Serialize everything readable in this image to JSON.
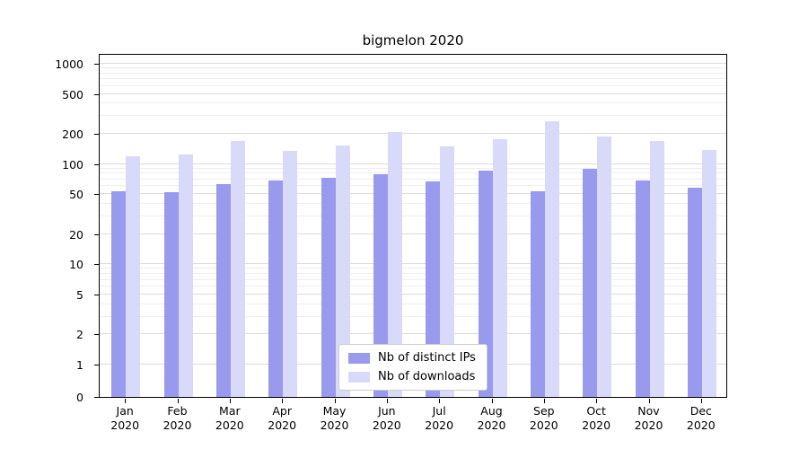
{
  "chart_data": {
    "type": "bar",
    "title": "bigmelon 2020",
    "yscale": "symlog",
    "ylim": [
      0,
      1300
    ],
    "yticks": [
      0,
      1,
      2,
      5,
      10,
      20,
      50,
      100,
      200,
      500,
      1000
    ],
    "minor_tick_mantissas": [
      3,
      4,
      6,
      7,
      8,
      9
    ],
    "grid": "horizontal major and minor gridlines",
    "legend_position": "lower center",
    "categories": [
      "Jan 2020",
      "Feb 2020",
      "Mar 2020",
      "Apr 2020",
      "May 2020",
      "Jun 2020",
      "Jul 2020",
      "Aug 2020",
      "Sep 2020",
      "Oct 2020",
      "Nov 2020",
      "Dec 2020"
    ],
    "series": [
      {
        "name": "Nb of distinct IPs",
        "color": "#9999ee",
        "values": [
          53,
          52,
          63,
          68,
          73,
          79,
          67,
          86,
          54,
          90,
          68,
          58
        ]
      },
      {
        "name": "Nb of downloads",
        "color": "#d9d9f9",
        "values": [
          120,
          125,
          170,
          135,
          152,
          210,
          150,
          175,
          265,
          188,
          170,
          138
        ]
      }
    ],
    "colors": {
      "axis": "#000000",
      "grid_major": "#dcdcdc",
      "grid_minor": "#eeeeee",
      "background": "#ffffff"
    }
  }
}
